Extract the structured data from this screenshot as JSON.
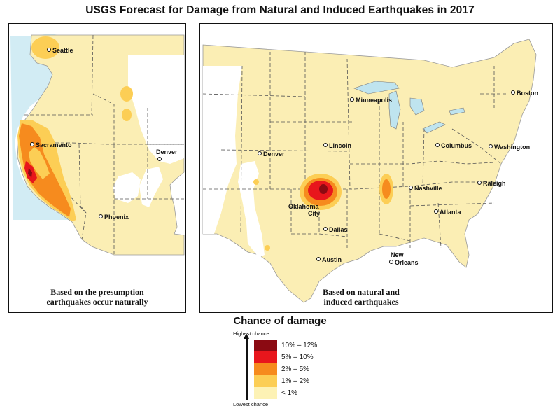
{
  "title": "USGS Forecast for Damage from Natural and Induced Earthquakes in 2017",
  "panels": {
    "west": {
      "caption_line1": "Based on the presumption",
      "caption_line2": "earthquakes occur naturally",
      "cities": [
        "Seattle",
        "Sacramento",
        "Denver",
        "Phoenix"
      ]
    },
    "us": {
      "caption_line1": "Based on natural and",
      "caption_line2": "induced earthquakes",
      "cities": [
        "Minneapolis",
        "Boston",
        "Lincoln",
        "Denver",
        "Columbus",
        "Washington",
        "Nashville",
        "Raleigh",
        "Oklahoma",
        "City",
        "Atlanta",
        "Dallas",
        "Austin",
        "New",
        "Orleans"
      ]
    }
  },
  "legend": {
    "title": "Chance of damage",
    "axis_top": "Highest chance",
    "axis_bottom": "Lowest chance",
    "items": [
      {
        "label": "10% – 12%",
        "color": "#8b0a12"
      },
      {
        "label": "5% – 10%",
        "color": "#e8161c"
      },
      {
        "label": "2% – 5%",
        "color": "#f68b1e"
      },
      {
        "label": "1% – 2%",
        "color": "#fcce55"
      },
      {
        "label": "< 1%",
        "color": "#fdf2b5"
      }
    ]
  },
  "colors": {
    "base": "#fbeeb4",
    "low": "#fcce55",
    "mid": "#f68b1e",
    "high": "#e8161c",
    "top": "#8b0a12",
    "coast": "#bfe4ef"
  }
}
